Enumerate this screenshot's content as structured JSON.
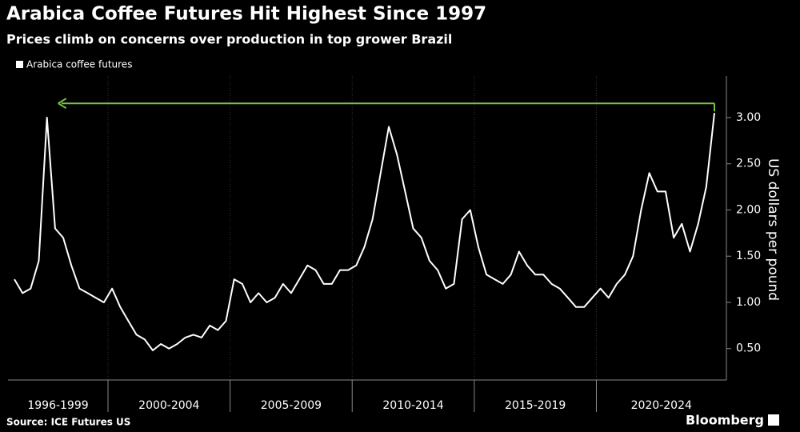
{
  "chart_data": {
    "type": "line",
    "title": "Arabica Coffee Futures Hit Highest Since 1997",
    "subtitle": "Prices climb on concerns over production in top grower Brazil",
    "y_axis_label": "US dollars per pound",
    "source": "Source: ICE Futures US",
    "logo": "Bloomberg",
    "xbands": [
      {
        "label": "1996-1999",
        "from": 0,
        "to": 11
      },
      {
        "label": "2000-2004",
        "from": 12,
        "to": 26
      },
      {
        "label": "2005-2009",
        "from": 27,
        "to": 41
      },
      {
        "label": "2010-2014",
        "from": 42,
        "to": 56
      },
      {
        "label": "2015-2019",
        "from": 57,
        "to": 71
      },
      {
        "label": "2020-2024",
        "from": 72,
        "to": 86
      }
    ],
    "series": [
      {
        "name": "Arabica coffee futures",
        "color": "#ffffff",
        "values": [
          1.25,
          1.1,
          1.15,
          1.45,
          3.0,
          1.8,
          1.7,
          1.4,
          1.15,
          1.1,
          1.05,
          1.0,
          1.15,
          0.95,
          0.8,
          0.65,
          0.6,
          0.48,
          0.55,
          0.5,
          0.55,
          0.62,
          0.65,
          0.62,
          0.75,
          0.7,
          0.8,
          1.25,
          1.2,
          1.0,
          1.1,
          1.0,
          1.05,
          1.2,
          1.1,
          1.25,
          1.4,
          1.35,
          1.2,
          1.2,
          1.35,
          1.35,
          1.4,
          1.6,
          1.9,
          2.4,
          2.9,
          2.6,
          2.2,
          1.8,
          1.7,
          1.45,
          1.35,
          1.15,
          1.2,
          1.9,
          2.0,
          1.6,
          1.3,
          1.25,
          1.2,
          1.3,
          1.55,
          1.4,
          1.3,
          1.3,
          1.2,
          1.15,
          1.05,
          0.95,
          0.95,
          1.05,
          1.15,
          1.05,
          1.2,
          1.3,
          1.5,
          2.0,
          2.4,
          2.2,
          2.2,
          1.7,
          1.85,
          1.55,
          1.85,
          2.25,
          3.05
        ]
      }
    ],
    "ylim": [
      0.16,
      3.45
    ],
    "yticks": [
      {
        "value": 0.5,
        "label": "0.50"
      },
      {
        "value": 1,
        "label": "1.00"
      },
      {
        "value": 1.5,
        "label": "1.50"
      },
      {
        "value": 2,
        "label": "2.00"
      },
      {
        "value": 2.5,
        "label": "2.50"
      },
      {
        "value": 3,
        "label": "3.00"
      }
    ],
    "arrow_color": "#7cc242"
  }
}
